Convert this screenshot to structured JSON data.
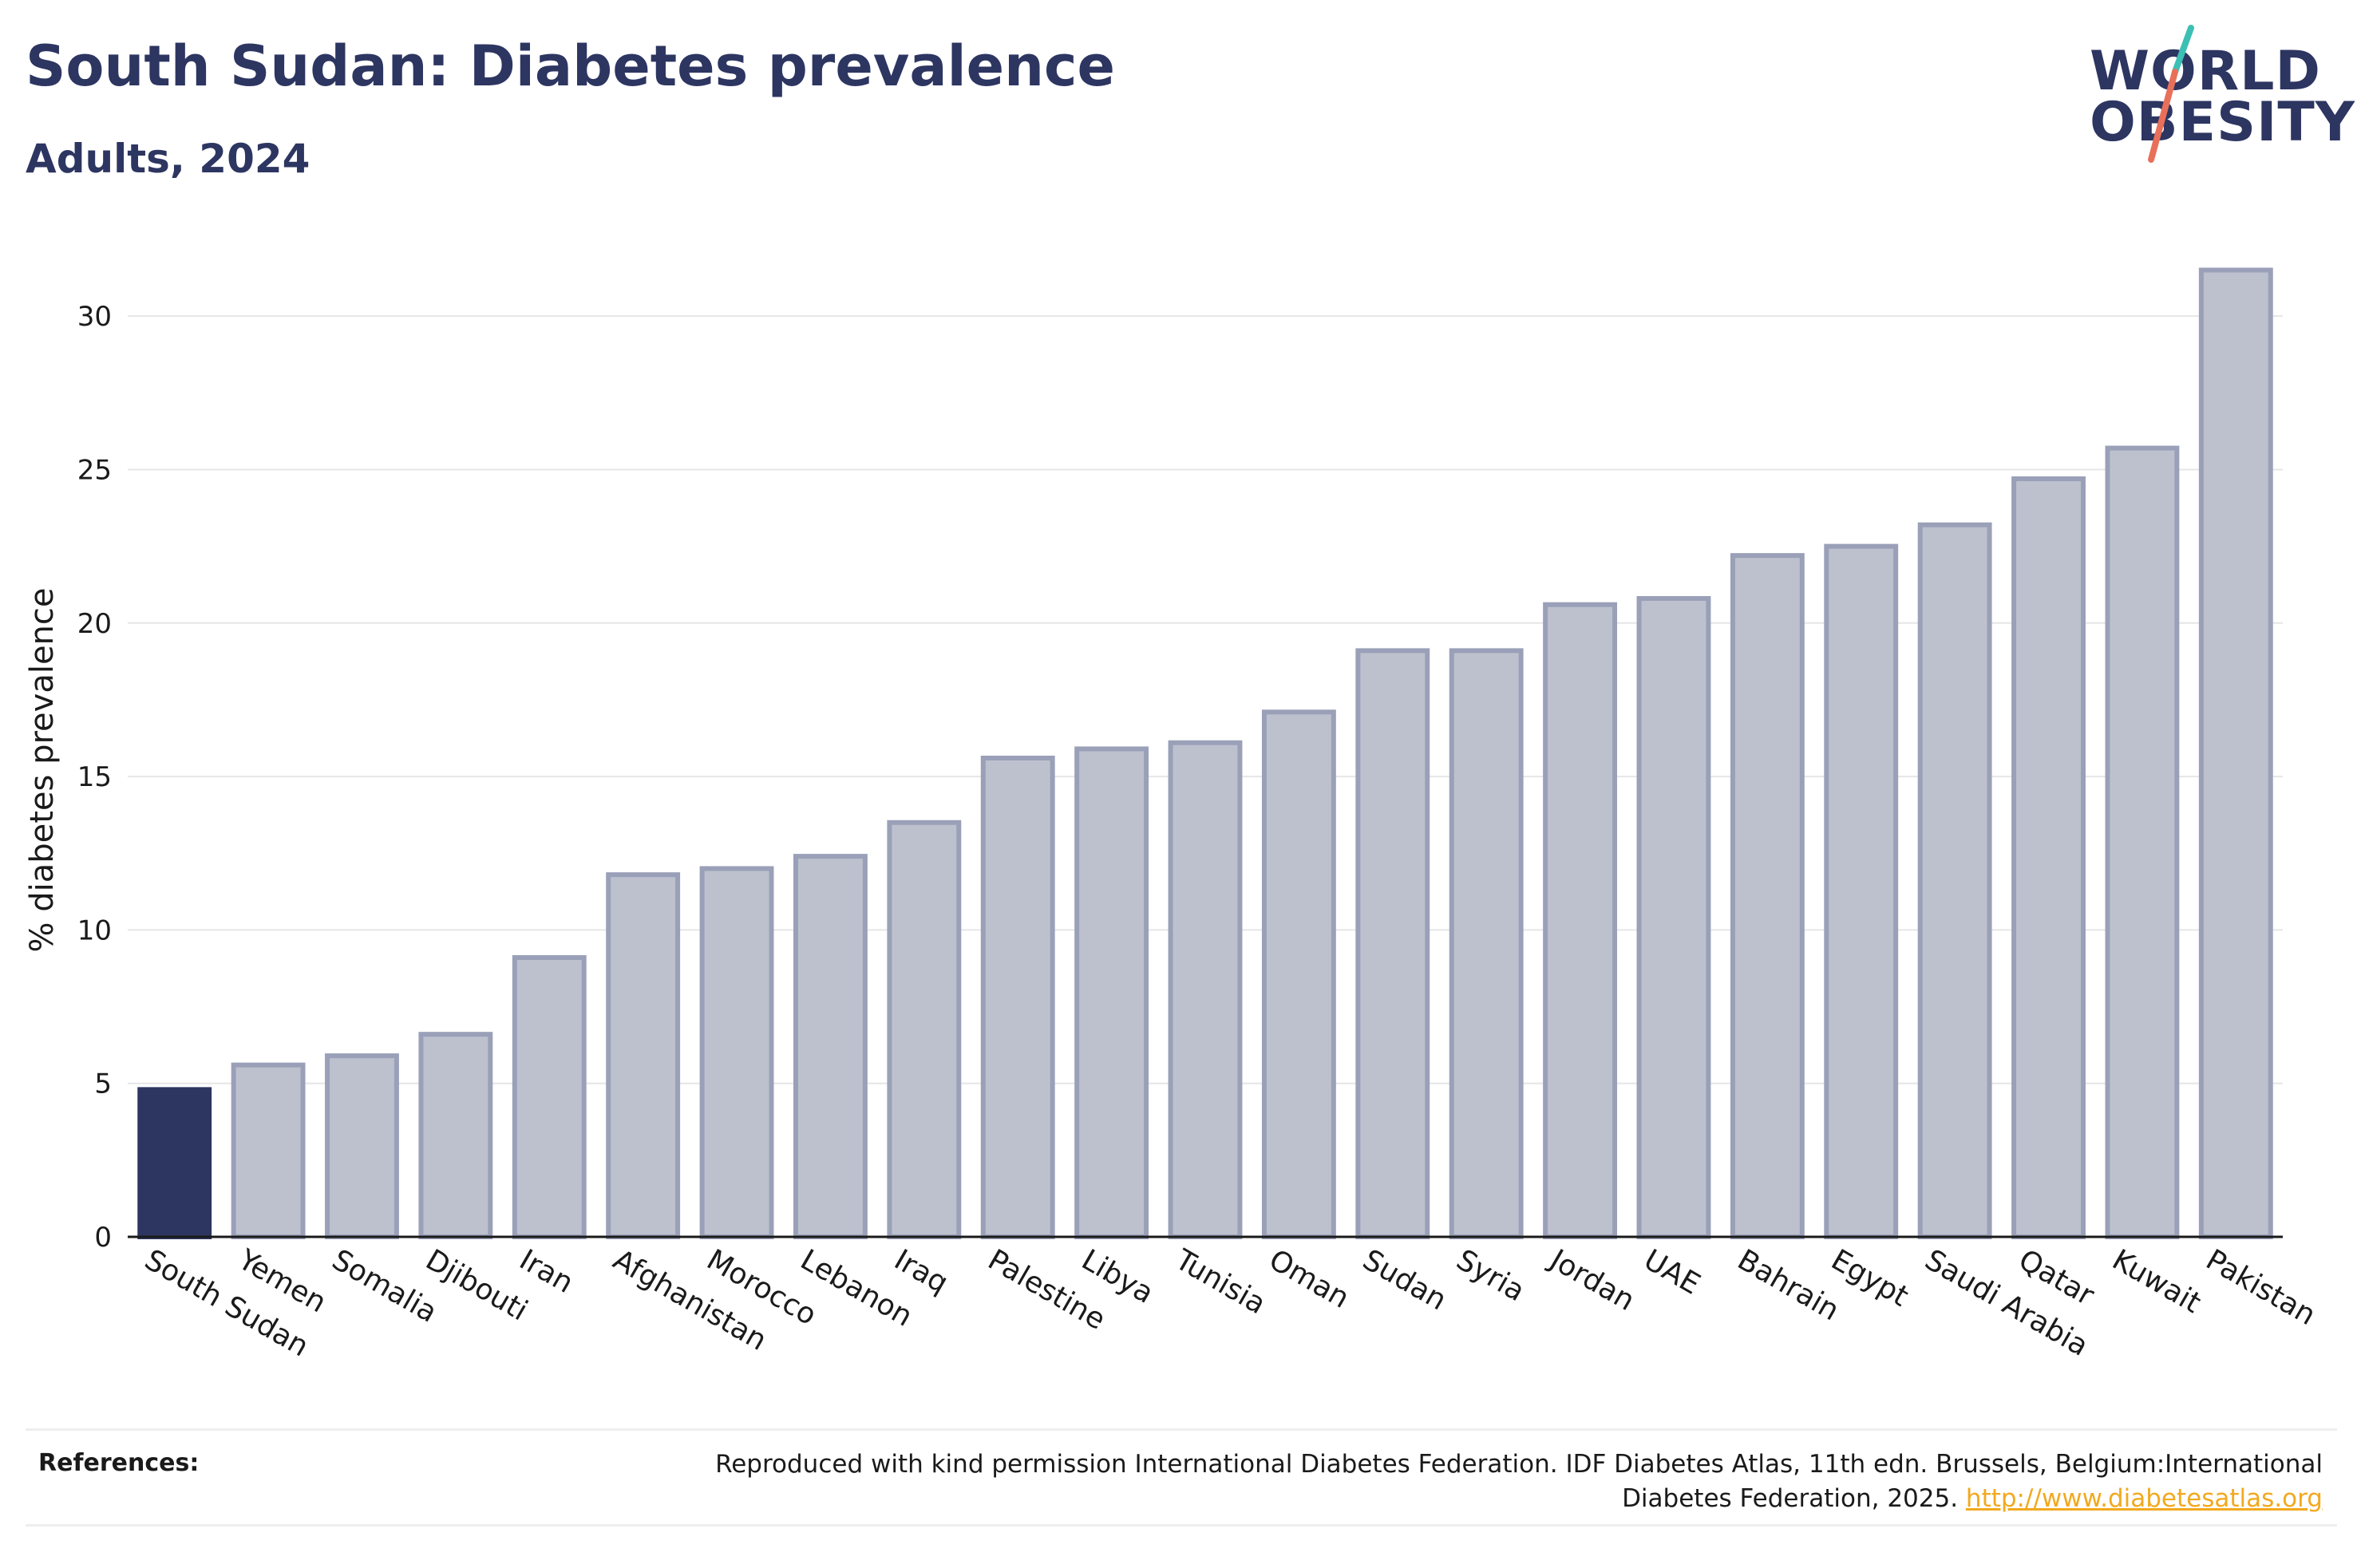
{
  "header": {
    "title": "South Sudan: Diabetes prevalence",
    "subtitle": "Adults, 2024"
  },
  "logo": {
    "line1": "WORLD",
    "line2": "OBESITY"
  },
  "colors": {
    "highlight": "#2d3561",
    "bar": "#bdc1ce",
    "bar_edge": "#9aa0b8",
    "grid": "#e6e6e6",
    "link": "#f2a91f"
  },
  "chart_data": {
    "type": "bar",
    "ylabel": "% diabetes prevalence",
    "ylim": [
      0,
      32.5
    ],
    "yticks": [
      "0",
      "5",
      "10",
      "15",
      "20",
      "25",
      "30"
    ],
    "grid": true,
    "highlight_category": "South Sudan",
    "categories": [
      "South Sudan",
      "Yemen",
      "Somalia",
      "Djibouti",
      "Iran",
      "Afghanistan",
      "Morocco",
      "Lebanon",
      "Iraq",
      "Palestine",
      "Libya",
      "Tunisia",
      "Oman",
      "Sudan",
      "Syria",
      "Jordan",
      "UAE",
      "Bahrain",
      "Egypt",
      "Saudi Arabia",
      "Qatar",
      "Kuwait",
      "Pakistan"
    ],
    "values": [
      4.8,
      5.6,
      5.9,
      6.6,
      9.1,
      11.8,
      12.0,
      12.4,
      13.5,
      15.6,
      15.9,
      16.1,
      17.1,
      19.1,
      19.1,
      20.6,
      20.8,
      22.2,
      22.5,
      23.2,
      24.7,
      25.7,
      31.5
    ]
  },
  "references": {
    "label": "References:",
    "text": "Reproduced with kind permission International Diabetes Federation. IDF Diabetes Atlas, 11th edn. Brussels, Belgium:International Diabetes Federation, 2025. ",
    "link": "http://www.diabetesatlas.org"
  }
}
